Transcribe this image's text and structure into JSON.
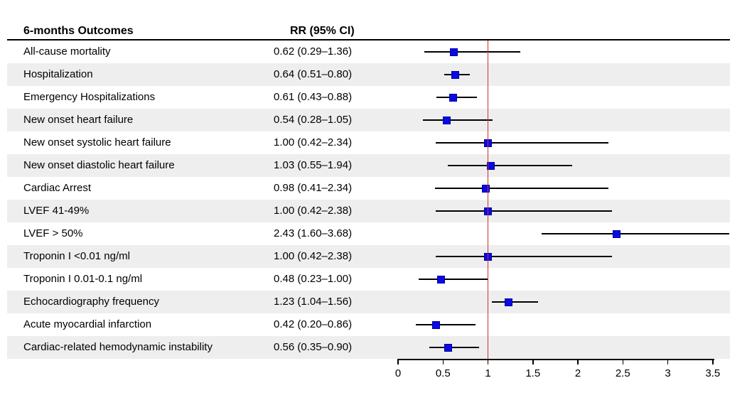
{
  "header": {
    "outcomes_column": "6-months Outcomes",
    "rr_column": "RR (95% CI)"
  },
  "colors": {
    "marker_fill": "#0a0ae6",
    "marker_border": "#0000a0",
    "reference_line": "#cf2e2e",
    "ci_line": "#000000",
    "alt_row_band": "#eeeeee",
    "text": "#000000"
  },
  "chart_data": {
    "type": "forest",
    "title": "6-months Outcomes",
    "rr_column_header": "RR (95% CI)",
    "axis": {
      "range": [
        0,
        3.5
      ],
      "ticks": [
        0,
        0.5,
        1,
        1.5,
        2,
        2.5,
        3,
        3.5
      ],
      "tick_labels": [
        "0",
        "0.5",
        "1",
        "1.5",
        "2",
        "2.5",
        "3",
        "3.5"
      ],
      "reference_line": 1.0,
      "grid": false,
      "scale": "linear"
    },
    "rows": [
      {
        "label": "All-cause mortality",
        "rr_text": "0.62 (0.29–1.36)",
        "rr": 0.62,
        "ci_low": 0.29,
        "ci_high": 1.36
      },
      {
        "label": "Hospitalization",
        "rr_text": "0.64 (0.51–0.80)",
        "rr": 0.64,
        "ci_low": 0.51,
        "ci_high": 0.8
      },
      {
        "label": "Emergency Hospitalizations",
        "rr_text": "0.61 (0.43–0.88)",
        "rr": 0.61,
        "ci_low": 0.43,
        "ci_high": 0.88
      },
      {
        "label": "New onset heart failure",
        "rr_text": "0.54 (0.28–1.05)",
        "rr": 0.54,
        "ci_low": 0.28,
        "ci_high": 1.05
      },
      {
        "label": "New onset systolic heart failure",
        "rr_text": "1.00 (0.42–2.34)",
        "rr": 1.0,
        "ci_low": 0.42,
        "ci_high": 2.34
      },
      {
        "label": "New onset diastolic heart failure",
        "rr_text": "1.03 (0.55–1.94)",
        "rr": 1.03,
        "ci_low": 0.55,
        "ci_high": 1.94
      },
      {
        "label": "Cardiac Arrest",
        "rr_text": "0.98 (0.41–2.34)",
        "rr": 0.98,
        "ci_low": 0.41,
        "ci_high": 2.34
      },
      {
        "label": "LVEF 41-49%",
        "rr_text": "1.00 (0.42–2.38)",
        "rr": 1.0,
        "ci_low": 0.42,
        "ci_high": 2.38
      },
      {
        "label": "LVEF > 50%",
        "rr_text": "2.43 (1.60–3.68)",
        "rr": 2.43,
        "ci_low": 1.6,
        "ci_high": 3.68
      },
      {
        "label": "Troponin I <0.01 ng/ml",
        "rr_text": "1.00 (0.42–2.38)",
        "rr": 1.0,
        "ci_low": 0.42,
        "ci_high": 2.38
      },
      {
        "label": "Troponin I 0.01-0.1 ng/ml",
        "rr_text": "0.48 (0.23–1.00)",
        "rr": 0.48,
        "ci_low": 0.23,
        "ci_high": 1.0
      },
      {
        "label": "Echocardiography frequency",
        "rr_text": "1.23 (1.04–1.56)",
        "rr": 1.23,
        "ci_low": 1.04,
        "ci_high": 1.56
      },
      {
        "label": "Acute myocardial infarction",
        "rr_text": "0.42 (0.20–0.86)",
        "rr": 0.42,
        "ci_low": 0.2,
        "ci_high": 0.86
      },
      {
        "label": "Cardiac-related hemodynamic instability",
        "rr_text": "0.56 (0.35–0.90)",
        "rr": 0.56,
        "ci_low": 0.35,
        "ci_high": 0.9
      }
    ]
  }
}
